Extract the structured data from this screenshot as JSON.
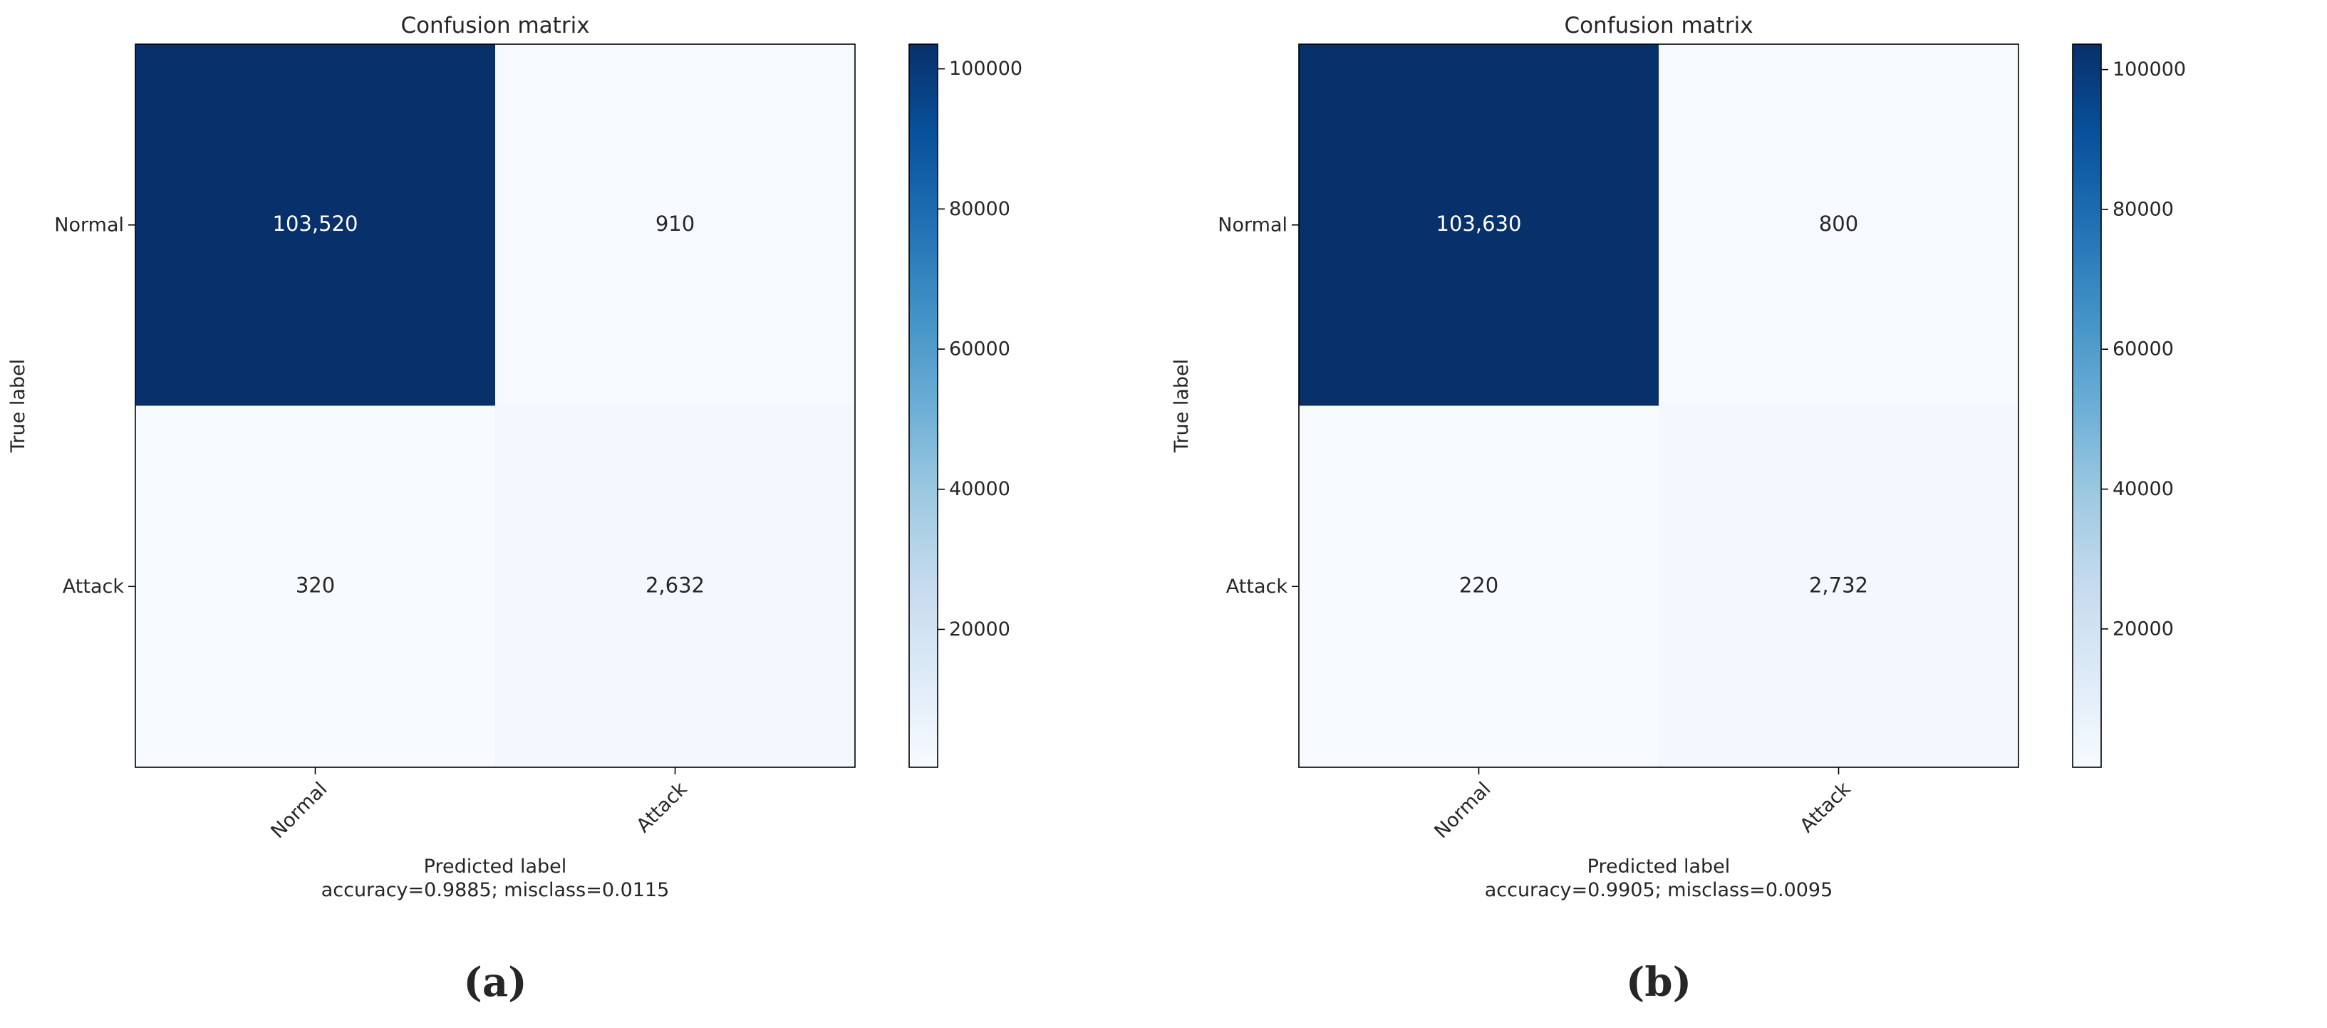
{
  "chart_data": [
    {
      "type": "heatmap",
      "panel_label": "(a)",
      "title": "Confusion matrix",
      "xlabel": "Predicted label",
      "ylabel": "True label",
      "footer": "accuracy=0.9885; misclass=0.0115",
      "x_categories": [
        "Normal",
        "Attack"
      ],
      "y_categories": [
        "Normal",
        "Attack"
      ],
      "values": [
        [
          103520,
          910
        ],
        [
          320,
          2632
        ]
      ],
      "cell_labels": [
        [
          "103,520",
          "910"
        ],
        [
          "320",
          "2,632"
        ]
      ],
      "colormap": "Blues",
      "colorbar": {
        "range": [
          320,
          103520
        ],
        "ticks": [
          20000,
          40000,
          60000,
          80000,
          100000
        ]
      }
    },
    {
      "type": "heatmap",
      "panel_label": "(b)",
      "title": "Confusion matrix",
      "xlabel": "Predicted label",
      "ylabel": "True label",
      "footer": "accuracy=0.9905; misclass=0.0095",
      "x_categories": [
        "Normal",
        "Attack"
      ],
      "y_categories": [
        "Normal",
        "Attack"
      ],
      "values": [
        [
          103630,
          800
        ],
        [
          220,
          2732
        ]
      ],
      "cell_labels": [
        [
          "103,630",
          "800"
        ],
        [
          "220",
          "2,732"
        ]
      ],
      "colormap": "Blues",
      "colorbar": {
        "range": [
          220,
          103630
        ],
        "ticks": [
          20000,
          40000,
          60000,
          80000,
          100000
        ]
      }
    }
  ]
}
